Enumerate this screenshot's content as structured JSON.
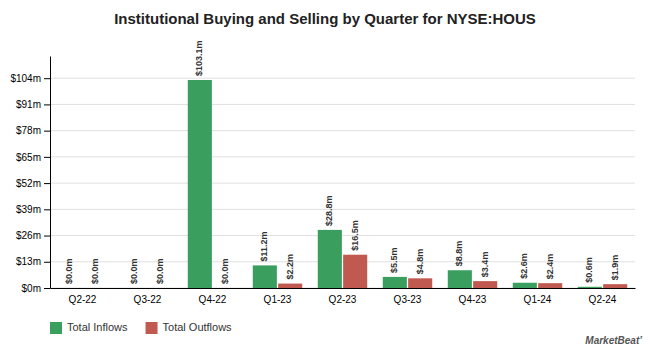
{
  "chart_data": {
    "type": "bar",
    "title": "Institutional Buying and Selling by Quarter for NYSE:HOUS",
    "categories": [
      "Q2-22",
      "Q3-22",
      "Q4-22",
      "Q1-23",
      "Q2-23",
      "Q3-23",
      "Q4-23",
      "Q1-24",
      "Q2-24"
    ],
    "series": [
      {
        "name": "Total Inflows",
        "color": "#3a9e5f",
        "values": [
          0.0,
          0.0,
          103.1,
          11.2,
          28.8,
          5.5,
          8.8,
          2.6,
          0.6
        ],
        "value_labels": [
          "$0.0m",
          "$0.0m",
          "$103.1m",
          "$11.2m",
          "$28.8m",
          "$5.5m",
          "$8.8m",
          "$2.6m",
          "$0.6m"
        ]
      },
      {
        "name": "Total Outflows",
        "color": "#c05a50",
        "values": [
          0.0,
          0.0,
          0.0,
          2.2,
          16.5,
          4.8,
          3.4,
          2.4,
          1.9
        ],
        "value_labels": [
          "$0.0m",
          "$0.0m",
          "$0.0m",
          "$2.2m",
          "$16.5m",
          "$4.8m",
          "$3.4m",
          "$2.4m",
          "$1.9m"
        ]
      }
    ],
    "ylim": [
      0,
      115
    ],
    "yticks": [
      {
        "value": 0,
        "label": "$0m"
      },
      {
        "value": 13,
        "label": "$13m"
      },
      {
        "value": 26,
        "label": "$26m"
      },
      {
        "value": 39,
        "label": "$39m"
      },
      {
        "value": 52,
        "label": "$52m"
      },
      {
        "value": 65,
        "label": "$65m"
      },
      {
        "value": 78,
        "label": "$78m"
      },
      {
        "value": 91,
        "label": "$91m"
      },
      {
        "value": 104,
        "label": "$104m"
      }
    ],
    "grid": true,
    "legend": "bottom",
    "data_labels": true,
    "annotations": [
      "MarketBeat’"
    ]
  }
}
